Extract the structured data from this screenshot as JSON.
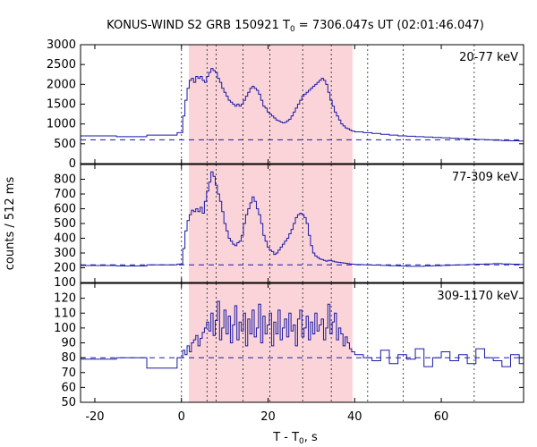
{
  "chart_data": {
    "type": "line",
    "title_prefix": "KONUS-WIND S2 GRB 150921 T",
    "title_sub": "0",
    "title_suffix": " = 7306.047s UT (02:01:46.047)",
    "xlabel_prefix": "T - T",
    "xlabel_sub": "0",
    "xlabel_suffix": ", s",
    "ylabel": "counts / 512 ms",
    "xlim": [
      -23.3,
      79.0
    ],
    "xticks": [
      -20,
      0,
      20,
      40,
      60
    ],
    "vlines": [
      0,
      5.9,
      8.0,
      14.2,
      20.4,
      28.0,
      34.6,
      43.0,
      51.2,
      67.6
    ],
    "shade_range": [
      1.7,
      39.5
    ],
    "colors": {
      "series": "#1a1aa6",
      "shade": "#f9c5cc",
      "background_line": "#1a1aa6"
    },
    "panels": [
      {
        "name": "20-77 keV",
        "ylim": [
          0,
          3000
        ],
        "yticks": [
          0,
          500,
          1000,
          1500,
          2000,
          2500,
          3000
        ],
        "background": 600,
        "x": [
          -23.3,
          -15,
          -8,
          -1,
          0.3,
          0.8,
          1.3,
          1.8,
          2.3,
          2.8,
          3.3,
          3.8,
          4.3,
          4.8,
          5.3,
          5.8,
          6.3,
          6.8,
          7.3,
          7.8,
          8.3,
          8.8,
          9.3,
          9.8,
          10.3,
          10.8,
          11.3,
          11.8,
          12.3,
          12.8,
          13.3,
          13.8,
          14.3,
          14.8,
          15.3,
          15.8,
          16.3,
          16.8,
          17.3,
          17.8,
          18.3,
          18.8,
          19.3,
          19.8,
          20.3,
          20.8,
          21.3,
          21.8,
          22.3,
          22.8,
          23.3,
          23.8,
          24.3,
          24.8,
          25.3,
          25.8,
          26.3,
          26.8,
          27.3,
          27.8,
          28.3,
          28.8,
          29.3,
          29.8,
          30.3,
          30.8,
          31.3,
          31.8,
          32.3,
          32.8,
          33.3,
          33.8,
          34.3,
          34.8,
          35.3,
          35.8,
          36.3,
          36.8,
          37.3,
          37.8,
          38.3,
          38.8,
          39.3,
          40,
          42,
          44,
          46,
          48,
          50,
          52,
          54,
          56,
          58,
          60,
          62,
          64,
          66,
          68,
          70,
          72,
          74,
          76,
          78,
          79
        ],
        "y": [
          700,
          680,
          720,
          780,
          1200,
          1600,
          1900,
          2100,
          2150,
          2050,
          2200,
          2150,
          2200,
          2100,
          2050,
          2200,
          2300,
          2400,
          2350,
          2300,
          2150,
          2050,
          1900,
          1800,
          1700,
          1600,
          1550,
          1500,
          1450,
          1500,
          1450,
          1500,
          1600,
          1700,
          1800,
          1900,
          1950,
          1900,
          1850,
          1750,
          1600,
          1450,
          1400,
          1300,
          1250,
          1200,
          1150,
          1100,
          1080,
          1050,
          1030,
          1040,
          1080,
          1120,
          1200,
          1300,
          1400,
          1500,
          1600,
          1700,
          1750,
          1800,
          1850,
          1900,
          1950,
          2000,
          2050,
          2100,
          2150,
          2100,
          2000,
          1800,
          1600,
          1450,
          1300,
          1200,
          1100,
          1000,
          950,
          900,
          880,
          850,
          820,
          800,
          780,
          760,
          740,
          720,
          700,
          690,
          680,
          670,
          660,
          650,
          640,
          630,
          620,
          610,
          600,
          590,
          580,
          575,
          570,
          560
        ]
      },
      {
        "name": "77-309 keV",
        "ylim": [
          100,
          900
        ],
        "yticks": [
          100,
          200,
          300,
          400,
          500,
          600,
          700,
          800
        ],
        "background": 220,
        "x": [
          -23.3,
          -15,
          -8,
          -1,
          0.3,
          0.8,
          1.3,
          1.8,
          2.3,
          2.8,
          3.3,
          3.8,
          4.3,
          4.8,
          5.3,
          5.8,
          6.3,
          6.8,
          7.3,
          7.8,
          8.3,
          8.8,
          9.3,
          9.8,
          10.3,
          10.8,
          11.3,
          11.8,
          12.3,
          12.8,
          13.3,
          13.8,
          14.3,
          14.8,
          15.3,
          15.8,
          16.3,
          16.8,
          17.3,
          17.8,
          18.3,
          18.8,
          19.3,
          19.8,
          20.3,
          20.8,
          21.3,
          21.8,
          22.3,
          22.8,
          23.3,
          23.8,
          24.3,
          24.8,
          25.3,
          25.8,
          26.3,
          26.8,
          27.3,
          27.8,
          28.3,
          28.8,
          29.3,
          29.8,
          30.3,
          30.8,
          31.3,
          31.8,
          32.3,
          32.8,
          33.3,
          33.8,
          34.3,
          34.8,
          35.3,
          35.8,
          36.3,
          36.8,
          37.3,
          37.8,
          38.3,
          38.8,
          39.3,
          40,
          42,
          44,
          46,
          48,
          50,
          52,
          54,
          56,
          58,
          60,
          62,
          64,
          66,
          68,
          70,
          72,
          74,
          76,
          78,
          79
        ],
        "y": [
          215,
          212,
          220,
          225,
          330,
          450,
          520,
          560,
          590,
          580,
          600,
          580,
          610,
          570,
          650,
          720,
          780,
          850,
          820,
          760,
          700,
          650,
          580,
          500,
          450,
          400,
          380,
          360,
          350,
          370,
          380,
          420,
          500,
          560,
          600,
          640,
          680,
          650,
          600,
          560,
          500,
          420,
          380,
          340,
          320,
          310,
          290,
          300,
          320,
          340,
          360,
          380,
          400,
          430,
          460,
          500,
          540,
          560,
          570,
          560,
          540,
          500,
          420,
          350,
          300,
          280,
          270,
          260,
          255,
          250,
          245,
          250,
          248,
          245,
          240,
          238,
          236,
          234,
          232,
          230,
          228,
          226,
          224,
          222,
          220,
          218,
          216,
          214,
          212,
          210,
          210,
          212,
          214,
          216,
          218,
          220,
          222,
          224,
          226,
          228,
          226,
          224,
          222,
          220
        ]
      },
      {
        "name": "309-1170 keV",
        "ylim": [
          50,
          130
        ],
        "yticks": [
          50,
          60,
          70,
          80,
          90,
          100,
          110,
          120
        ],
        "background": 80,
        "x": [
          -23.3,
          -15,
          -8,
          -1,
          0.3,
          0.8,
          1.3,
          1.8,
          2.3,
          2.8,
          3.3,
          3.8,
          4.3,
          4.8,
          5.3,
          5.8,
          6.3,
          6.8,
          7.3,
          7.8,
          8.3,
          8.8,
          9.3,
          9.8,
          10.3,
          10.8,
          11.3,
          11.8,
          12.3,
          12.8,
          13.3,
          13.8,
          14.3,
          14.8,
          15.3,
          15.8,
          16.3,
          16.8,
          17.3,
          17.8,
          18.3,
          18.8,
          19.3,
          19.8,
          20.3,
          20.8,
          21.3,
          21.8,
          22.3,
          22.8,
          23.3,
          23.8,
          24.3,
          24.8,
          25.3,
          25.8,
          26.3,
          26.8,
          27.3,
          27.8,
          28.3,
          28.8,
          29.3,
          29.8,
          30.3,
          30.8,
          31.3,
          31.8,
          32.3,
          32.8,
          33.3,
          33.8,
          34.3,
          34.8,
          35.3,
          35.8,
          36.3,
          36.8,
          37.3,
          37.8,
          38.3,
          38.8,
          39.3,
          40,
          42,
          44,
          46,
          48,
          50,
          52,
          54,
          56,
          58,
          60,
          62,
          64,
          66,
          68,
          70,
          72,
          74,
          76,
          78,
          79
        ],
        "y": [
          79,
          80,
          73,
          80,
          85,
          82,
          88,
          84,
          90,
          92,
          95,
          88,
          93,
          97,
          100,
          104,
          98,
          110,
          95,
          105,
          118,
          92,
          100,
          112,
          96,
          108,
          90,
          102,
          115,
          92,
          104,
          98,
          110,
          88,
          106,
          96,
          112,
          94,
          100,
          116,
          90,
          108,
          96,
          102,
          110,
          88,
          104,
          96,
          112,
          92,
          100,
          106,
          94,
          110,
          98,
          102,
          88,
          106,
          112,
          94,
          100,
          108,
          92,
          104,
          96,
          110,
          98,
          102,
          106,
          92,
          100,
          116,
          96,
          104,
          110,
          92,
          100,
          96,
          88,
          94,
          90,
          86,
          84,
          82,
          80,
          78,
          85,
          76,
          82,
          79,
          86,
          74,
          80,
          84,
          78,
          82,
          76,
          86,
          80,
          78,
          74,
          82,
          76,
          80
        ]
      }
    ]
  }
}
